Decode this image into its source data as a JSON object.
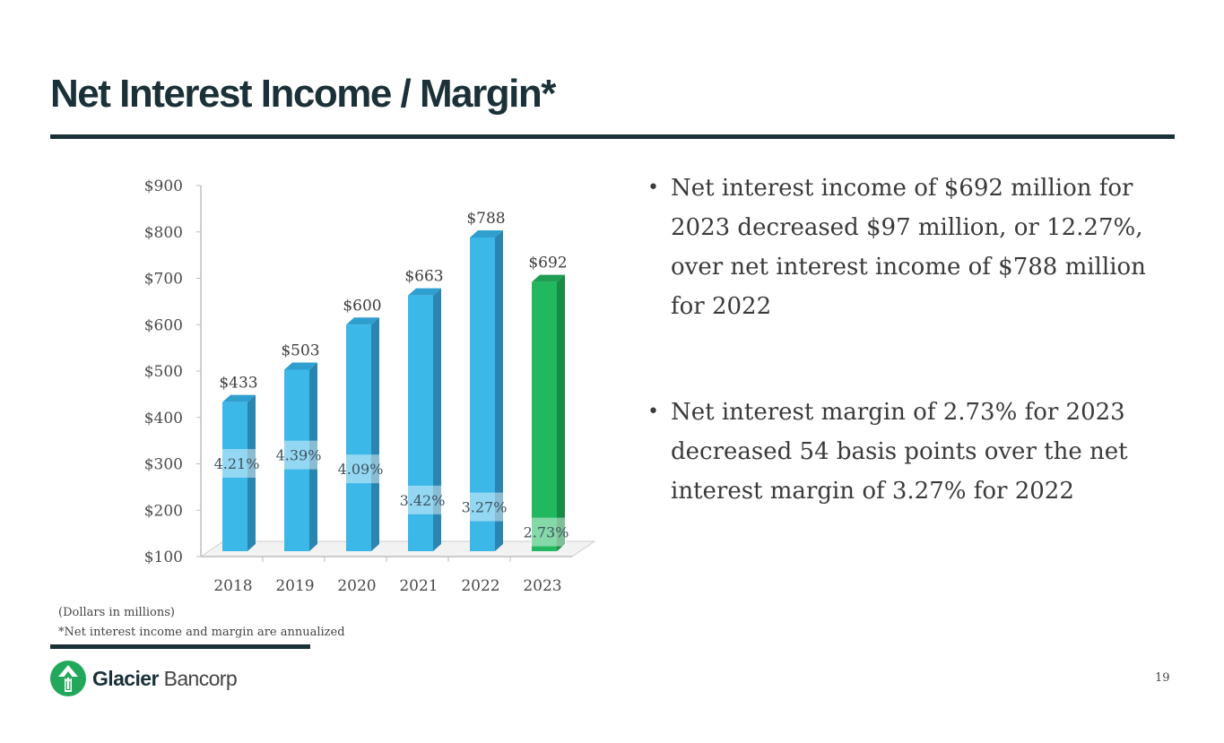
{
  "slide": {
    "title": "Net Interest Income / Margin*",
    "bullets": [
      "Net interest income of $692 million for 2023 decreased $97 million, or 12.27%, over net interest income of $788 million for 2022",
      "Net interest margin of 2.73% for 2023 decreased 54 basis points over the net interest margin of 3.27% for 2022"
    ],
    "notes": [
      "(Dollars in millions)",
      "*Net interest income and margin are annualized"
    ],
    "page_number": "19",
    "brand": {
      "name_bold": "Glacier",
      "name_light": " Bancorp",
      "logo_icon": "glacier-arrow-logo-icon"
    }
  },
  "colors": {
    "title": "#1b3138",
    "bar_blue": "#3bb7e8",
    "bar_blue_side": "#2a86b1",
    "bar_green": "#22b85f",
    "bar_green_side": "#188c46",
    "logo_green": "#22a85a"
  },
  "chart_data": {
    "type": "bar",
    "style": "3d-column",
    "categories": [
      "2018",
      "2019",
      "2020",
      "2021",
      "2022",
      "2023"
    ],
    "values": [
      433,
      503,
      600,
      663,
      788,
      692
    ],
    "value_labels": [
      "$433",
      "$503",
      "$600",
      "$663",
      "$788",
      "$692"
    ],
    "margins": [
      4.21,
      4.39,
      4.09,
      3.42,
      3.27,
      2.73
    ],
    "margin_labels": [
      "4.21%",
      "4.39%",
      "4.09%",
      "3.42%",
      "3.27%",
      "2.73%"
    ],
    "highlight_index": 5,
    "yticks": [
      "$100",
      "$200",
      "$300",
      "$400",
      "$500",
      "$600",
      "$700",
      "$800",
      "$900"
    ],
    "ylim": [
      100,
      900
    ],
    "grid": false,
    "legend": "none"
  }
}
